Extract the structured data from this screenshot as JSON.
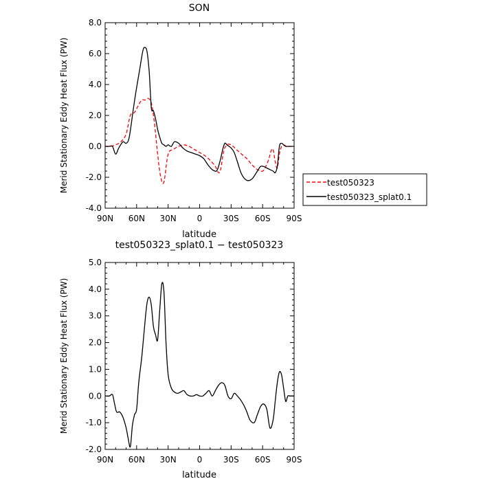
{
  "chart_data": [
    {
      "type": "line",
      "title": "SON",
      "xlabel": "latitude",
      "ylabel": "Merid Stationary Eddy Heat Flux (PW)",
      "xlim": [
        90,
        -90
      ],
      "ylim": [
        -4,
        8
      ],
      "yticks": [
        "-4.0",
        "-2.0",
        "0.0",
        "2.0",
        "4.0",
        "6.0",
        "8.0"
      ],
      "xticks": [
        "90N",
        "60N",
        "30N",
        "0",
        "30S",
        "60S",
        "90S"
      ],
      "legend_position": "right",
      "series": [
        {
          "name": "test050323",
          "color": "#ff0000",
          "style": "dashed",
          "x": [
            90,
            85,
            80,
            75,
            70,
            66,
            62,
            58,
            55,
            52,
            49,
            46,
            43,
            40,
            37,
            34,
            30,
            25,
            20,
            15,
            10,
            5,
            0,
            -5,
            -10,
            -15,
            -18,
            -20,
            -23,
            -26,
            -30,
            -35,
            -40,
            -45,
            -50,
            -55,
            -60,
            -63,
            -66,
            -68,
            -70,
            -72,
            -74,
            -76,
            -78,
            -80,
            -83,
            -86,
            -90
          ],
          "y": [
            0.0,
            0.0,
            0.1,
            0.3,
            0.8,
            2.0,
            2.2,
            2.7,
            3.0,
            3.0,
            3.1,
            2.8,
            1.5,
            -0.5,
            -2.0,
            -2.3,
            -0.5,
            -0.2,
            0.0,
            0.1,
            0.0,
            -0.2,
            -0.4,
            -0.6,
            -0.9,
            -1.3,
            -1.7,
            -1.5,
            -0.3,
            0.1,
            0.1,
            -0.2,
            -0.5,
            -0.8,
            -1.2,
            -1.5,
            -1.6,
            -1.3,
            -0.8,
            -0.3,
            -0.2,
            -1.0,
            -1.4,
            -0.5,
            0.0,
            0.1,
            0.0,
            0.0,
            0.0
          ]
        },
        {
          "name": "test050323_splat0.1",
          "color": "#000000",
          "style": "solid",
          "x": [
            90,
            86,
            83,
            80,
            77,
            73,
            70,
            67,
            63,
            60,
            57,
            54,
            52,
            50,
            48,
            46,
            44,
            42,
            40,
            38,
            36,
            34,
            32,
            30,
            27,
            24,
            20,
            16,
            12,
            8,
            4,
            0,
            -4,
            -8,
            -12,
            -16,
            -18,
            -20,
            -22,
            -24,
            -26,
            -28,
            -30,
            -33,
            -36,
            -40,
            -45,
            -50,
            -55,
            -58,
            -61,
            -64,
            -67,
            -70,
            -72,
            -74,
            -76,
            -78,
            -80,
            -82,
            -85,
            -88,
            -90
          ],
          "y": [
            0.0,
            0.0,
            0.0,
            -0.5,
            -0.1,
            0.3,
            0.2,
            0.6,
            2.5,
            3.8,
            5.0,
            6.2,
            6.4,
            6.1,
            4.8,
            2.5,
            2.3,
            1.8,
            1.1,
            0.6,
            0.2,
            0.1,
            0.0,
            0.1,
            0.0,
            0.3,
            0.2,
            -0.1,
            -0.3,
            -0.4,
            -0.5,
            -0.6,
            -0.8,
            -1.2,
            -1.5,
            -1.6,
            -1.3,
            -0.8,
            -0.2,
            0.2,
            0.1,
            0.0,
            -0.1,
            -0.4,
            -1.0,
            -1.8,
            -2.2,
            -2.1,
            -1.6,
            -1.3,
            -1.3,
            -1.4,
            -1.5,
            -1.6,
            -1.7,
            -1.3,
            0.0,
            0.2,
            0.1,
            0.0,
            0.0,
            0.0,
            0.0
          ]
        }
      ]
    },
    {
      "type": "line",
      "title": "test050323_splat0.1 − test050323",
      "xlabel": "latitude",
      "ylabel": "Merid Stationary Eddy Heat Flux (PW)",
      "xlim": [
        90,
        -90
      ],
      "ylim": [
        -2,
        5
      ],
      "yticks": [
        "-2.0",
        "-1.0",
        "0.0",
        "1.0",
        "2.0",
        "3.0",
        "4.0",
        "5.0"
      ],
      "xticks": [
        "90N",
        "60N",
        "30N",
        "0",
        "30S",
        "60S",
        "90S"
      ],
      "series": [
        {
          "color": "#000000",
          "style": "solid",
          "x": [
            90,
            86,
            83,
            81,
            79,
            76,
            73,
            70,
            68,
            66,
            64,
            62,
            60,
            58,
            55,
            52,
            50,
            48,
            46,
            44,
            42,
            40,
            38,
            36,
            34,
            32,
            30,
            27,
            24,
            21,
            18,
            15,
            12,
            9,
            6,
            3,
            0,
            -3,
            -6,
            -9,
            -12,
            -15,
            -18,
            -21,
            -24,
            -27,
            -30,
            -33,
            -36,
            -40,
            -44,
            -48,
            -52,
            -55,
            -58,
            -61,
            -64,
            -67,
            -70,
            -72,
            -74,
            -76,
            -78,
            -80,
            -82,
            -84,
            -86,
            -88,
            -90
          ],
          "y": [
            0.0,
            0.0,
            0.05,
            -0.3,
            -0.6,
            -0.6,
            -0.8,
            -1.2,
            -1.6,
            -1.9,
            -1.1,
            -0.7,
            -0.5,
            0.5,
            1.5,
            2.8,
            3.5,
            3.7,
            3.4,
            2.6,
            2.3,
            2.1,
            3.2,
            4.2,
            3.9,
            2.0,
            0.8,
            0.3,
            0.15,
            0.1,
            0.15,
            0.2,
            0.05,
            0.0,
            0.0,
            0.05,
            0.0,
            0.0,
            0.1,
            0.2,
            0.0,
            0.2,
            0.4,
            0.5,
            0.4,
            0.0,
            -0.1,
            0.1,
            0.0,
            -0.2,
            -0.5,
            -0.9,
            -1.0,
            -0.7,
            -0.4,
            -0.3,
            -0.5,
            -1.2,
            -0.9,
            -0.2,
            0.5,
            0.9,
            0.8,
            0.3,
            -0.2,
            0.0,
            0.0,
            0.0,
            0.0
          ]
        }
      ]
    }
  ]
}
